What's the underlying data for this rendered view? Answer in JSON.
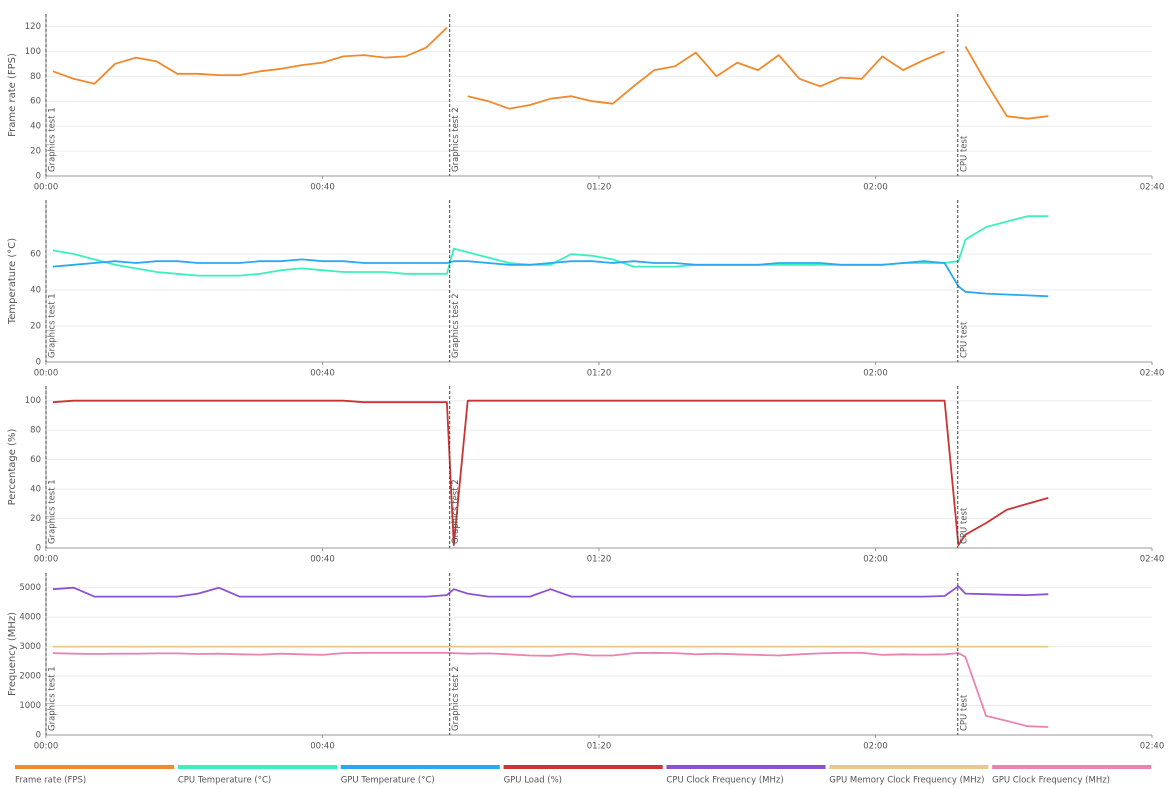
{
  "chart_data": [
    {
      "type": "line",
      "ylabel": "Frame rate (FPS)",
      "x": [
        1,
        4,
        7,
        10,
        13,
        16,
        19,
        22,
        25,
        28,
        31,
        34,
        37,
        40,
        43,
        46,
        49,
        52,
        55,
        58,
        59,
        61,
        64,
        67,
        70,
        73,
        76,
        79,
        82,
        85,
        88,
        91,
        94,
        97,
        100,
        103,
        106,
        109,
        112,
        115,
        118,
        121,
        124,
        127,
        130,
        132,
        133,
        136,
        139,
        142,
        145
      ],
      "xlim": [
        0,
        160
      ],
      "xticks": [
        {
          "value": 0,
          "label": "00:00"
        },
        {
          "value": 40,
          "label": "00:40"
        },
        {
          "value": 80,
          "label": "01:20"
        },
        {
          "value": 120,
          "label": "02:00"
        },
        {
          "value": 160,
          "label": "02:40"
        }
      ],
      "ylim": [
        0,
        130
      ],
      "yticks": [
        0,
        20,
        40,
        60,
        80,
        100,
        120
      ],
      "grid": true,
      "annotations": [
        {
          "x": 0,
          "label": "Graphics test 1"
        },
        {
          "x": 58.4,
          "label": "Graphics test 2"
        },
        {
          "x": 131.9,
          "label": "CPU test"
        }
      ],
      "series": [
        {
          "name": "Frame rate (FPS)",
          "color": "#f08a2c",
          "values": [
            84,
            78,
            74,
            90,
            95,
            92,
            82,
            82,
            81,
            81,
            84,
            86,
            89,
            91,
            96,
            97,
            95,
            96,
            103,
            119,
            null,
            64,
            60,
            54,
            57,
            62,
            64,
            60,
            58,
            72,
            85,
            88,
            99,
            80,
            91,
            85,
            97,
            78,
            72,
            79,
            78,
            96,
            85,
            93,
            100,
            null,
            104,
            75,
            48,
            46,
            48
          ]
        }
      ]
    },
    {
      "type": "line",
      "ylabel": "Temperature (°C)",
      "x": [
        1,
        4,
        7,
        10,
        13,
        16,
        19,
        22,
        25,
        28,
        31,
        34,
        37,
        40,
        43,
        46,
        49,
        52,
        55,
        58,
        59,
        61,
        64,
        67,
        70,
        73,
        76,
        79,
        82,
        85,
        88,
        91,
        94,
        97,
        100,
        103,
        106,
        109,
        112,
        115,
        118,
        121,
        124,
        127,
        130,
        132,
        133,
        136,
        139,
        142,
        145
      ],
      "xlim": [
        0,
        160
      ],
      "xticks": [
        {
          "value": 0,
          "label": "00:00"
        },
        {
          "value": 40,
          "label": "00:40"
        },
        {
          "value": 80,
          "label": "01:20"
        },
        {
          "value": 120,
          "label": "02:00"
        },
        {
          "value": 160,
          "label": "02:40"
        }
      ],
      "ylim": [
        0,
        90
      ],
      "yticks": [
        0,
        20,
        40,
        60
      ],
      "grid": true,
      "annotations": [
        {
          "x": 0,
          "label": "Graphics test 1"
        },
        {
          "x": 58.4,
          "label": "Graphics test 2"
        },
        {
          "x": 131.9,
          "label": "CPU test"
        }
      ],
      "series": [
        {
          "name": "CPU Temperature (°C)",
          "color": "#3cf0bd",
          "values": [
            62,
            60,
            57,
            54,
            52,
            50,
            49,
            48,
            48,
            48,
            49,
            51,
            52,
            51,
            50,
            50,
            50,
            49,
            49,
            49,
            63,
            61,
            58,
            55,
            54,
            54,
            60,
            59,
            57,
            53,
            53,
            53,
            54,
            54,
            54,
            54,
            54,
            54,
            54,
            54,
            54,
            54,
            55,
            55,
            55,
            56,
            68,
            75,
            78,
            81,
            81
          ]
        },
        {
          "name": "GPU Temperature (°C)",
          "color": "#2aa9f2",
          "values": [
            53,
            54,
            55,
            56,
            55,
            56,
            56,
            55,
            55,
            55,
            56,
            56,
            57,
            56,
            56,
            55,
            55,
            55,
            55,
            55,
            56,
            56,
            55,
            54,
            54,
            55,
            56,
            56,
            55,
            56,
            55,
            55,
            54,
            54,
            54,
            54,
            55,
            55,
            55,
            54,
            54,
            54,
            55,
            56,
            55,
            42,
            39,
            38,
            37.5,
            37,
            36.5
          ]
        }
      ]
    },
    {
      "type": "line",
      "ylabel": "Percentage (%)",
      "x": [
        1,
        4,
        7,
        10,
        13,
        16,
        19,
        22,
        25,
        28,
        31,
        34,
        37,
        40,
        43,
        46,
        49,
        52,
        55,
        58,
        59,
        61,
        64,
        67,
        70,
        73,
        76,
        79,
        82,
        85,
        88,
        91,
        94,
        97,
        100,
        103,
        106,
        109,
        112,
        115,
        118,
        121,
        124,
        127,
        130,
        132,
        133,
        136,
        139,
        142,
        145
      ],
      "xlim": [
        0,
        160
      ],
      "xticks": [
        {
          "value": 0,
          "label": "00:00"
        },
        {
          "value": 40,
          "label": "00:40"
        },
        {
          "value": 80,
          "label": "01:20"
        },
        {
          "value": 120,
          "label": "02:00"
        },
        {
          "value": 160,
          "label": "02:40"
        }
      ],
      "ylim": [
        0,
        110
      ],
      "yticks": [
        0,
        20,
        40,
        60,
        80,
        100
      ],
      "grid": true,
      "annotations": [
        {
          "x": 0,
          "label": "Graphics test 1"
        },
        {
          "x": 58.4,
          "label": "Graphics test 2"
        },
        {
          "x": 131.9,
          "label": "CPU test"
        }
      ],
      "series": [
        {
          "name": "GPU Load (%)",
          "color": "#cc3333",
          "values": [
            99,
            100,
            100,
            100,
            100,
            100,
            100,
            100,
            100,
            100,
            100,
            100,
            100,
            100,
            100,
            99,
            99,
            99,
            99,
            99,
            2,
            100,
            100,
            100,
            100,
            100,
            100,
            100,
            100,
            100,
            100,
            100,
            100,
            100,
            100,
            100,
            100,
            100,
            100,
            100,
            100,
            100,
            100,
            100,
            100,
            2,
            9,
            17,
            26,
            30,
            34
          ]
        }
      ]
    },
    {
      "type": "line",
      "ylabel": "Frequency (MHz)",
      "x": [
        1,
        4,
        7,
        10,
        13,
        16,
        19,
        22,
        25,
        28,
        31,
        34,
        37,
        40,
        43,
        46,
        49,
        52,
        55,
        58,
        59,
        61,
        64,
        67,
        70,
        73,
        76,
        79,
        82,
        85,
        88,
        91,
        94,
        97,
        100,
        103,
        106,
        109,
        112,
        115,
        118,
        121,
        124,
        127,
        130,
        132,
        133,
        136,
        139,
        142,
        145
      ],
      "xlim": [
        0,
        160
      ],
      "xticks": [
        {
          "value": 0,
          "label": "00:00"
        },
        {
          "value": 40,
          "label": "00:40"
        },
        {
          "value": 80,
          "label": "01:20"
        },
        {
          "value": 120,
          "label": "02:00"
        },
        {
          "value": 160,
          "label": "02:40"
        }
      ],
      "ylim": [
        0,
        5500
      ],
      "yticks": [
        0,
        1000,
        2000,
        3000,
        4000,
        5000
      ],
      "grid": true,
      "annotations": [
        {
          "x": 0,
          "label": "Graphics test 1"
        },
        {
          "x": 58.4,
          "label": "Graphics test 2"
        },
        {
          "x": 131.9,
          "label": "CPU test"
        }
      ],
      "series": [
        {
          "name": "CPU Clock Frequency (MHz)",
          "color": "#8c52d6",
          "values": [
            4950,
            5000,
            4700,
            4700,
            4700,
            4700,
            4700,
            4800,
            5000,
            4700,
            4700,
            4700,
            4700,
            4700,
            4700,
            4700,
            4700,
            4700,
            4700,
            4750,
            4950,
            4800,
            4700,
            4700,
            4700,
            4950,
            4700,
            4700,
            4700,
            4700,
            4700,
            4700,
            4700,
            4700,
            4700,
            4700,
            4700,
            4700,
            4700,
            4700,
            4700,
            4700,
            4700,
            4700,
            4720,
            5050,
            4800,
            4780,
            4760,
            4750,
            4780
          ]
        },
        {
          "name": "GPU Memory Clock Frequency (MHz)",
          "color": "#e9c98a",
          "values": [
            3000,
            3000,
            3000,
            3000,
            3000,
            3000,
            3000,
            3000,
            3000,
            3000,
            3000,
            3000,
            3000,
            3000,
            3000,
            3000,
            3000,
            3000,
            3000,
            3000,
            3000,
            3000,
            3000,
            3000,
            3000,
            3000,
            3000,
            3000,
            3000,
            3000,
            3000,
            3000,
            3000,
            3000,
            3000,
            3000,
            3000,
            3000,
            3000,
            3000,
            3000,
            3000,
            3000,
            3000,
            3000,
            3000,
            3000,
            3000,
            3000,
            3000,
            3000
          ]
        },
        {
          "name": "GPU Clock Frequency (MHz)",
          "color": "#e984b2",
          "values": [
            2780,
            2760,
            2750,
            2760,
            2760,
            2770,
            2770,
            2750,
            2760,
            2740,
            2730,
            2760,
            2740,
            2720,
            2780,
            2790,
            2790,
            2790,
            2790,
            2790,
            2780,
            2760,
            2770,
            2740,
            2700,
            2690,
            2760,
            2700,
            2700,
            2780,
            2790,
            2780,
            2740,
            2760,
            2740,
            2720,
            2700,
            2740,
            2770,
            2790,
            2790,
            2720,
            2740,
            2730,
            2740,
            2780,
            2650,
            650,
            480,
            300,
            270
          ]
        }
      ]
    }
  ]
}
